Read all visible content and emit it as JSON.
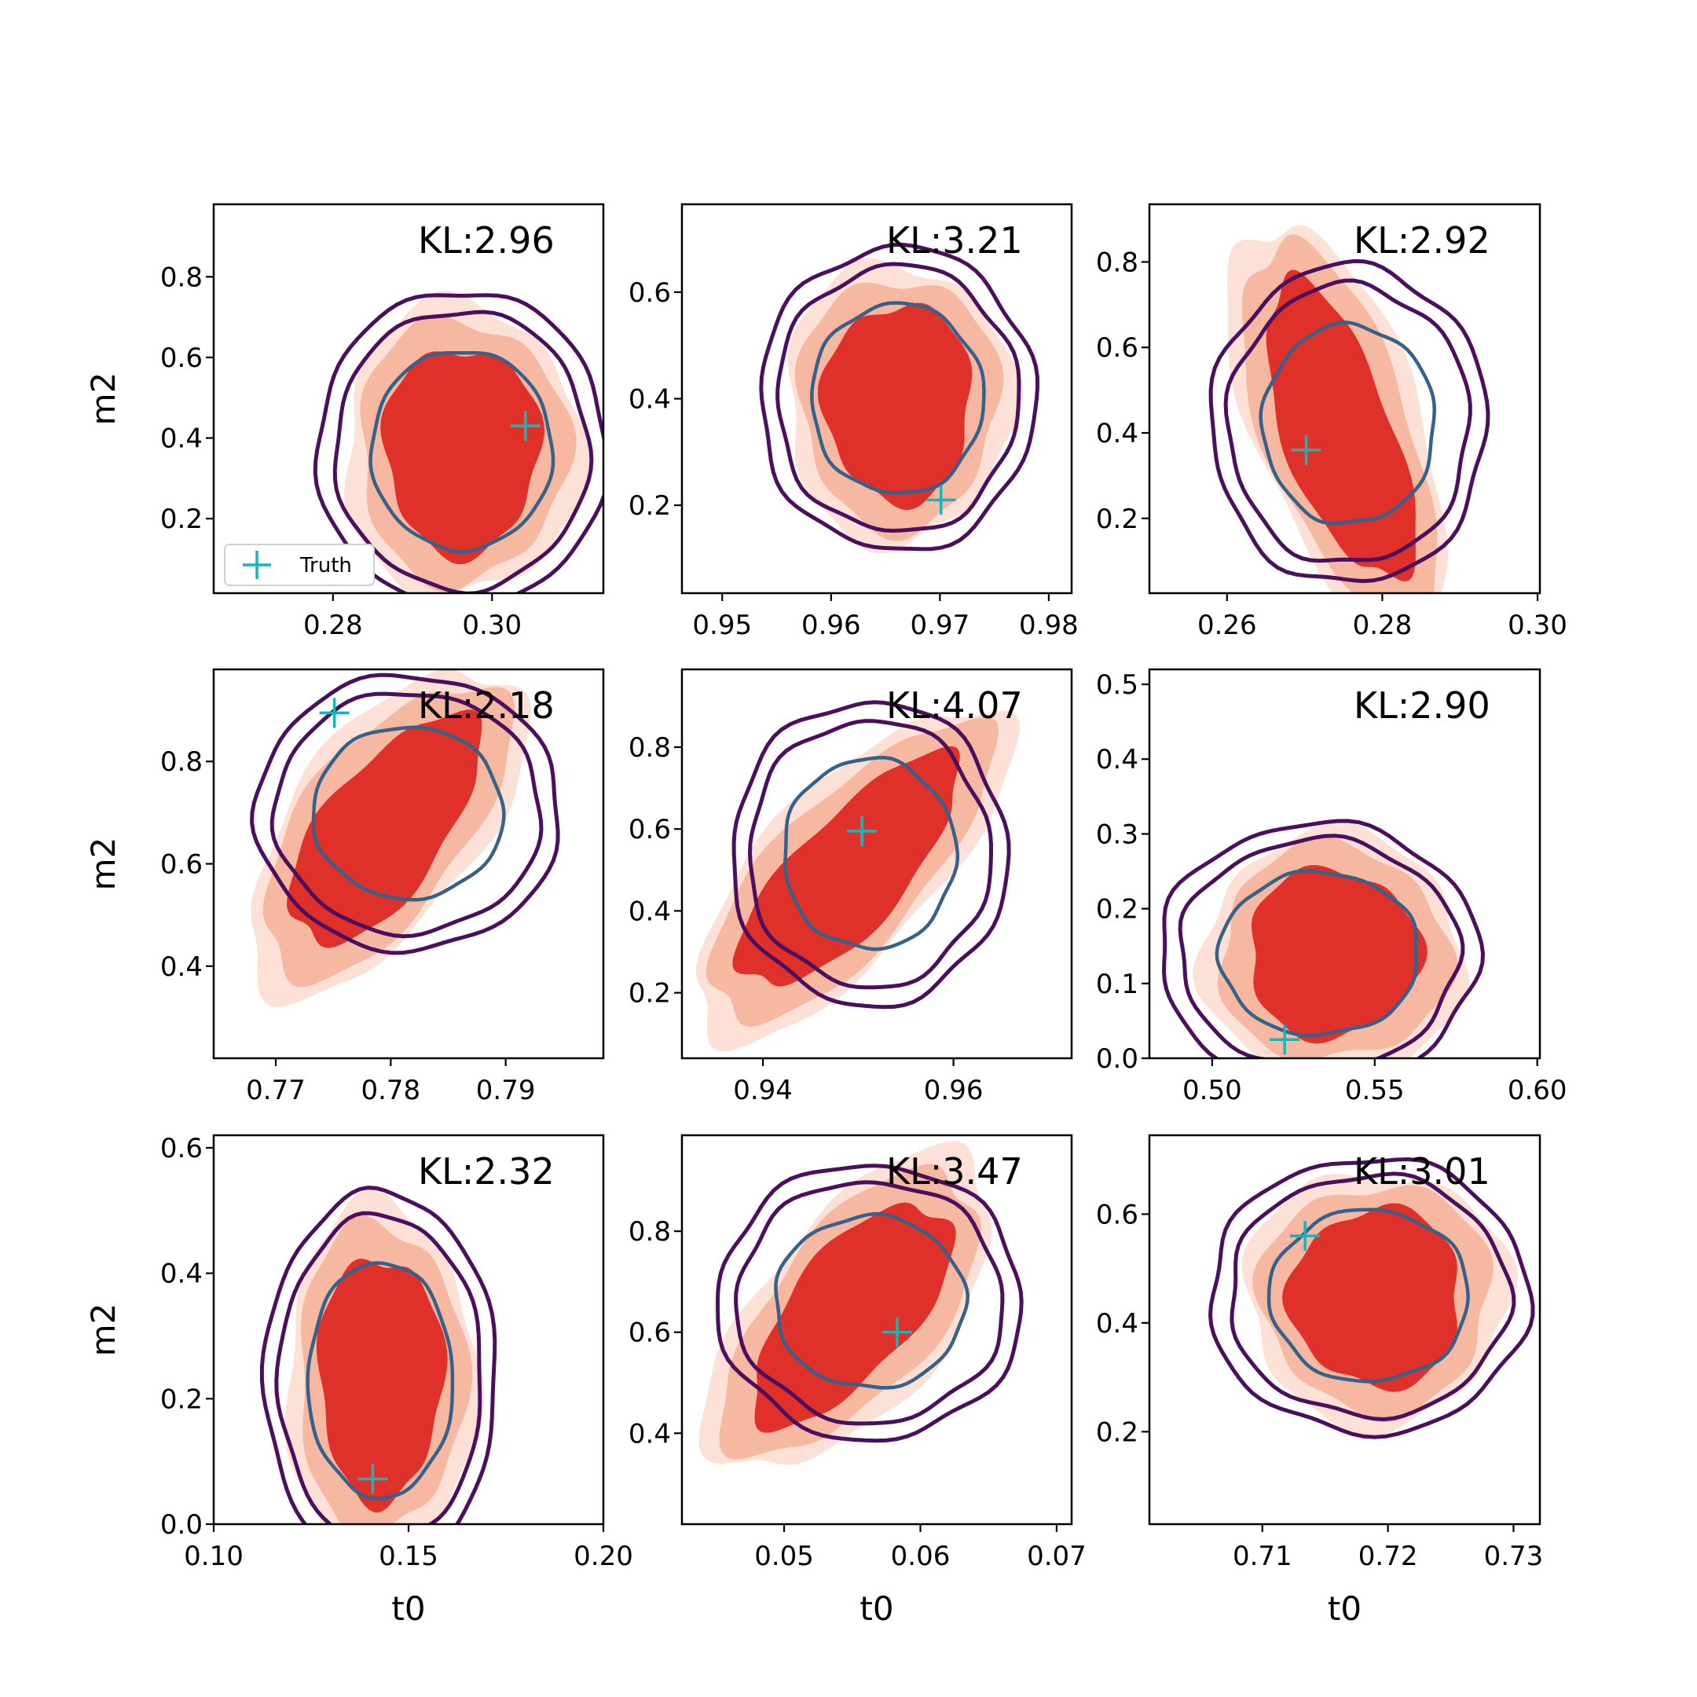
{
  "figure": {
    "legend_label": "Truth",
    "colors": {
      "core": "#e0302a",
      "mid": "#f7b8a2",
      "outer": "#fde1d6",
      "ring_outer": "#4b0f5e",
      "ring_inner": "#36628a",
      "truth": "#17b6b6"
    }
  },
  "chart_data": [
    {
      "type": "scatter",
      "xlabel": "",
      "ylabel": "m2",
      "annotation": "KL:2.96",
      "xlim": [
        0.265,
        0.314
      ],
      "ylim": [
        0.015,
        0.98
      ],
      "xticks": [
        0.28,
        0.3
      ],
      "xtick_labels": [
        "0.28",
        "0.30"
      ],
      "yticks": [
        0.2,
        0.4,
        0.6,
        0.8
      ],
      "ytick_labels": [
        "0.2",
        "0.4",
        "0.6",
        "0.8"
      ],
      "truth": [
        0.3042,
        0.43
      ],
      "center": [
        0.2962,
        0.37
      ],
      "legend": true
    },
    {
      "type": "scatter",
      "xlabel": "",
      "ylabel": "",
      "annotation": "KL:3.21",
      "xlim": [
        0.9463,
        0.9821
      ],
      "ylim": [
        0.035,
        0.765
      ],
      "xticks": [
        0.95,
        0.96,
        0.97,
        0.98
      ],
      "xtick_labels": [
        "0.95",
        "0.96",
        "0.97",
        "0.98"
      ],
      "yticks": [
        0.2,
        0.4,
        0.6
      ],
      "ytick_labels": [
        "0.2",
        "0.4",
        "0.6"
      ],
      "truth": [
        0.9701,
        0.21
      ],
      "center": [
        0.9661,
        0.4
      ]
    },
    {
      "type": "scatter",
      "xlabel": "",
      "ylabel": "",
      "annotation": "KL:2.92",
      "xlim": [
        0.25,
        0.3003
      ],
      "ylim": [
        0.025,
        0.935
      ],
      "xticks": [
        0.26,
        0.28,
        0.3
      ],
      "xtick_labels": [
        "0.26",
        "0.28",
        "0.30"
      ],
      "yticks": [
        0.2,
        0.4,
        0.6,
        0.8
      ],
      "ytick_labels": [
        "0.2",
        "0.4",
        "0.6",
        "0.8"
      ],
      "truth": [
        0.2702,
        0.36
      ],
      "center": [
        0.2757,
        0.42
      ]
    },
    {
      "type": "scatter",
      "xlabel": "",
      "ylabel": "m2",
      "annotation": "KL:2.18",
      "xlim": [
        0.7646,
        0.7985
      ],
      "ylim": [
        0.22,
        0.98
      ],
      "xticks": [
        0.77,
        0.78,
        0.79
      ],
      "xtick_labels": [
        "0.77",
        "0.78",
        "0.79"
      ],
      "yticks": [
        0.4,
        0.6,
        0.8
      ],
      "ytick_labels": [
        "0.4",
        "0.6",
        "0.8"
      ],
      "truth": [
        0.7751,
        0.895
      ],
      "center": [
        0.7815,
        0.7
      ]
    },
    {
      "type": "scatter",
      "xlabel": "",
      "ylabel": "",
      "annotation": "KL:4.07",
      "xlim": [
        0.9315,
        0.9724
      ],
      "ylim": [
        0.04,
        0.99
      ],
      "xticks": [
        0.94,
        0.96
      ],
      "xtick_labels": [
        "0.94",
        "0.96"
      ],
      "yticks": [
        0.2,
        0.4,
        0.6,
        0.8
      ],
      "ytick_labels": [
        "0.2",
        "0.4",
        "0.6",
        "0.8"
      ],
      "truth": [
        0.9504,
        0.595
      ],
      "center": [
        0.9512,
        0.54
      ]
    },
    {
      "type": "scatter",
      "xlabel": "",
      "ylabel": "",
      "annotation": "KL:2.90",
      "xlim": [
        0.4807,
        0.6008
      ],
      "ylim": [
        0.0,
        0.52
      ],
      "xticks": [
        0.5,
        0.55,
        0.6
      ],
      "xtick_labels": [
        "0.50",
        "0.55",
        "0.60"
      ],
      "yticks": [
        0.0,
        0.1,
        0.2,
        0.3,
        0.4,
        0.5
      ],
      "ytick_labels": [
        "0.0",
        "0.1",
        "0.2",
        "0.3",
        "0.4",
        "0.5"
      ],
      "truth": [
        0.5223,
        0.025
      ],
      "center": [
        0.5329,
        0.14
      ]
    },
    {
      "type": "scatter",
      "xlabel": "t0",
      "ylabel": "m2",
      "annotation": "KL:2.32",
      "xlim": [
        0.1,
        0.2
      ],
      "ylim": [
        0.0,
        0.62
      ],
      "xticks": [
        0.1,
        0.15,
        0.2
      ],
      "xtick_labels": [
        "0.10",
        "0.15",
        "0.20"
      ],
      "yticks": [
        0.0,
        0.2,
        0.4,
        0.6
      ],
      "ytick_labels": [
        "0.0",
        "0.2",
        "0.4",
        "0.6"
      ],
      "truth": [
        0.1408,
        0.072
      ],
      "center": [
        0.1428,
        0.23
      ]
    },
    {
      "type": "scatter",
      "xlabel": "t0",
      "ylabel": "",
      "annotation": "KL:3.47",
      "xlim": [
        0.0425,
        0.0711
      ],
      "ylim": [
        0.22,
        0.99
      ],
      "xticks": [
        0.05,
        0.06,
        0.07
      ],
      "xtick_labels": [
        "0.05",
        "0.06",
        "0.07"
      ],
      "yticks": [
        0.4,
        0.6,
        0.8
      ],
      "ytick_labels": [
        "0.4",
        "0.6",
        "0.8"
      ],
      "truth": [
        0.0583,
        0.6
      ],
      "center": [
        0.0563,
        0.66
      ]
    },
    {
      "type": "scatter",
      "xlabel": "t0",
      "ylabel": "",
      "annotation": "KL:3.01",
      "xlim": [
        0.701,
        0.7321
      ],
      "ylim": [
        0.03,
        0.745
      ],
      "xticks": [
        0.71,
        0.72,
        0.73
      ],
      "xtick_labels": [
        "0.71",
        "0.72",
        "0.73"
      ],
      "yticks": [
        0.2,
        0.4,
        0.6
      ],
      "ytick_labels": [
        "0.2",
        "0.4",
        "0.6"
      ],
      "truth": [
        0.7134,
        0.56
      ],
      "center": [
        0.7185,
        0.45
      ]
    }
  ]
}
